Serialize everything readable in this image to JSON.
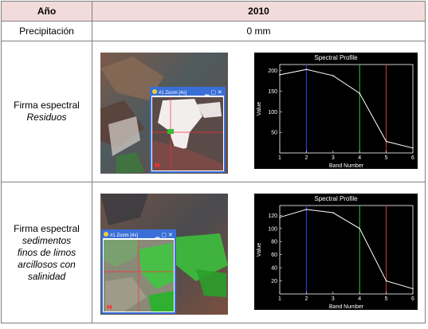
{
  "header": {
    "col_a": "Año",
    "col_b": "2010"
  },
  "precip": {
    "label": "Precipitación",
    "value": "0 mm"
  },
  "rows": [
    {
      "label_line1": "Firma espectral",
      "label_italic": [
        "Residuos"
      ],
      "zoom_title": "#1 Zoom [4x]",
      "chart": {
        "title": "Spectral Profile",
        "xlabel": "Band Number",
        "ylabel": "Value",
        "x_ticks": [
          "1",
          "2",
          "3",
          "4",
          "5",
          "6"
        ],
        "y_ticks": [
          "50",
          "100",
          "150",
          "200"
        ]
      }
    },
    {
      "label_line1": "Firma espectral",
      "label_italic": [
        "sedimentos",
        "finos de limos",
        "arcillosos con",
        "salinidad"
      ],
      "zoom_title": "#1 Zoom [4x]",
      "chart": {
        "title": "Spectral Profile",
        "xlabel": "Band Number",
        "ylabel": "Value",
        "x_ticks": [
          "1",
          "2",
          "3",
          "4",
          "5",
          "6"
        ],
        "y_ticks": [
          "20",
          "40",
          "60",
          "80",
          "100",
          "120"
        ]
      }
    }
  ],
  "chart_data": [
    {
      "type": "line",
      "title": "Spectral Profile",
      "xlabel": "Band Number",
      "ylabel": "Value",
      "x": [
        1,
        2,
        3,
        4,
        5,
        6
      ],
      "series": [
        {
          "values": [
            190,
            203,
            188,
            145,
            28,
            12
          ]
        }
      ],
      "xlim": [
        1,
        6
      ],
      "ylim": [
        0,
        215
      ],
      "vertical_markers": [
        {
          "x": 2,
          "color": "#3a3aff"
        },
        {
          "x": 4,
          "color": "#3ac83a"
        },
        {
          "x": 5,
          "color": "#d23a3a"
        }
      ]
    },
    {
      "type": "line",
      "title": "Spectral Profile",
      "xlabel": "Band Number",
      "ylabel": "Value",
      "x": [
        1,
        2,
        3,
        4,
        5,
        6
      ],
      "series": [
        {
          "values": [
            117,
            129,
            124,
            100,
            20,
            8
          ]
        }
      ],
      "xlim": [
        1,
        6
      ],
      "ylim": [
        0,
        135
      ],
      "vertical_markers": [
        {
          "x": 2,
          "color": "#3a3aff"
        },
        {
          "x": 4,
          "color": "#3ac83a"
        },
        {
          "x": 5,
          "color": "#d23a3a"
        }
      ]
    }
  ],
  "colors": {
    "header_bg": "#f2dcdb",
    "plot_bg": "#000000",
    "zoom_titlebar": "#3a6fd8"
  }
}
